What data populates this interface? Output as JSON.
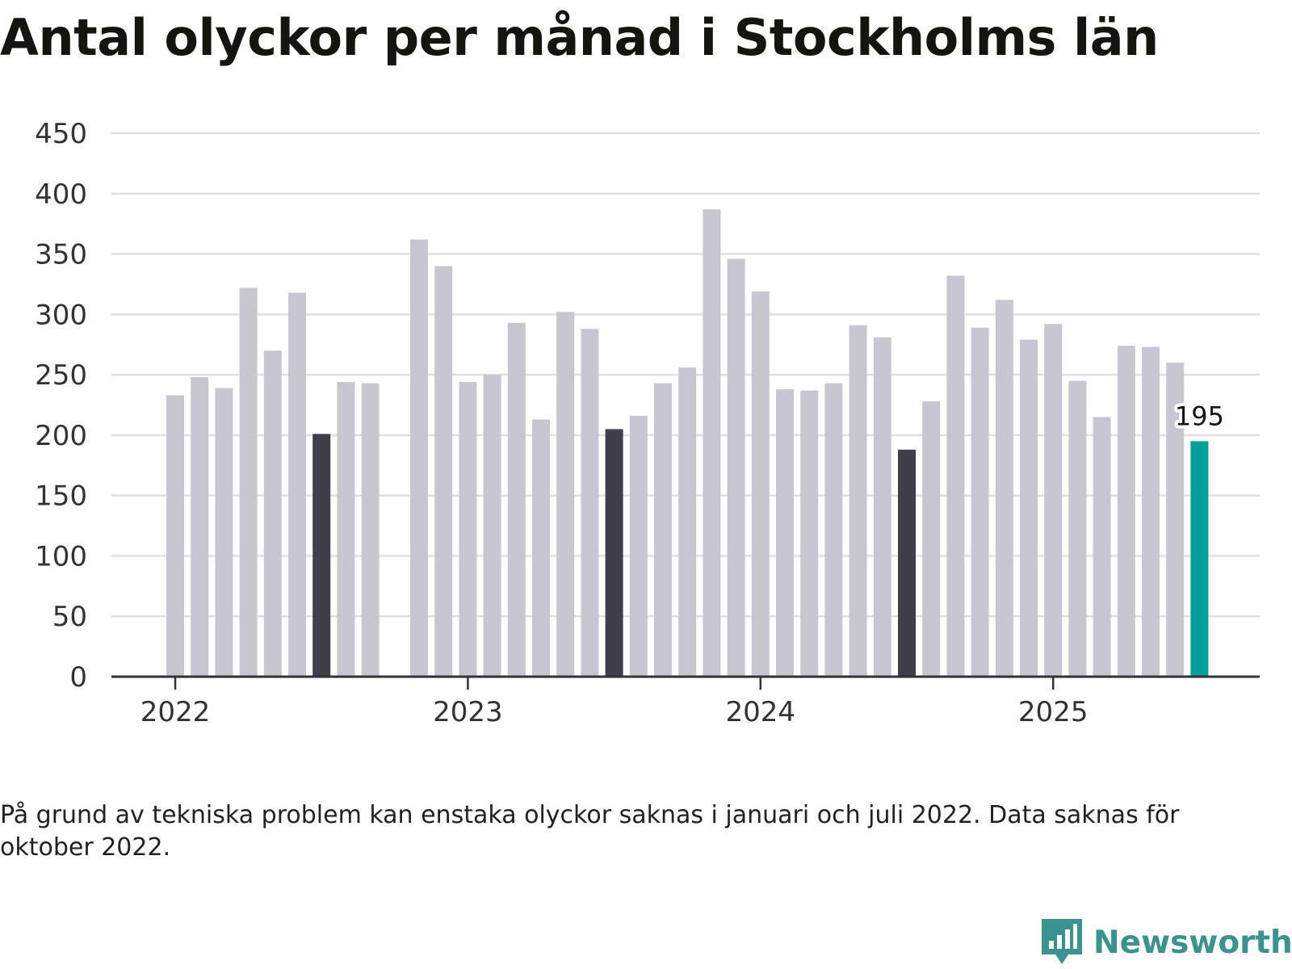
{
  "title": "Antal olyckor per månad i Stockholms län",
  "note": "På grund av tekniska problem kan enstaka olyckor saknas i januari och juli 2022. Data saknas för oktober 2022.",
  "brand": "Newsworthy",
  "colors": {
    "bar_default": "#c7c6d1",
    "bar_july": "#3f3e4a",
    "bar_latest": "#00a096",
    "grid": "#e0e0e0",
    "axis": "#333333",
    "brand": "#3a938e"
  },
  "chart_data": {
    "type": "bar",
    "ylim": [
      0,
      450
    ],
    "yticks": [
      0,
      50,
      100,
      150,
      200,
      250,
      300,
      350,
      400,
      450
    ],
    "xticks": [
      "2022",
      "2023",
      "2024",
      "2025"
    ],
    "grid": true,
    "highlight_label": "195",
    "categories": [
      "2022-01",
      "2022-02",
      "2022-03",
      "2022-04",
      "2022-05",
      "2022-06",
      "2022-07",
      "2022-08",
      "2022-09",
      "2022-10",
      "2022-11",
      "2022-12",
      "2023-01",
      "2023-02",
      "2023-03",
      "2023-04",
      "2023-05",
      "2023-06",
      "2023-07",
      "2023-08",
      "2023-09",
      "2023-10",
      "2023-11",
      "2023-12",
      "2024-01",
      "2024-02",
      "2024-03",
      "2024-04",
      "2024-05",
      "2024-06",
      "2024-07",
      "2024-08",
      "2024-09",
      "2024-10",
      "2024-11",
      "2024-12",
      "2025-01",
      "2025-02",
      "2025-03",
      "2025-04",
      "2025-05",
      "2025-06",
      "2025-07"
    ],
    "values": [
      233,
      248,
      239,
      322,
      270,
      318,
      201,
      244,
      243,
      null,
      362,
      340,
      244,
      250,
      293,
      213,
      302,
      288,
      205,
      216,
      243,
      256,
      387,
      346,
      319,
      238,
      237,
      243,
      291,
      281,
      188,
      228,
      332,
      289,
      312,
      279,
      292,
      245,
      215,
      274,
      273,
      260,
      195
    ]
  }
}
